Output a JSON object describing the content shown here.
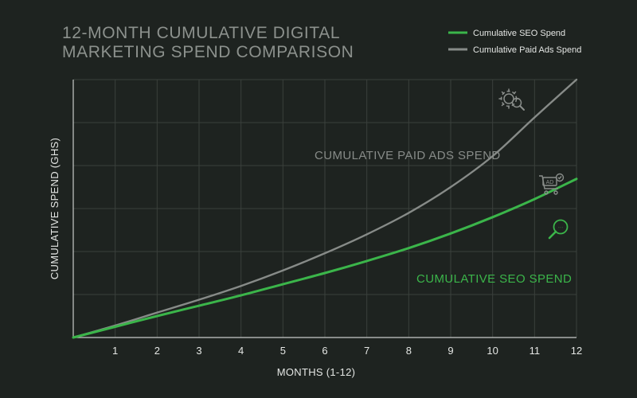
{
  "colors": {
    "background": "#1e2320",
    "grid": "#3a403c",
    "axis": "#c8ccc9",
    "title": "#8c918d",
    "seo": "#3bb54a",
    "paid_ads": "#878b88",
    "label_text": "#e4e6e4",
    "icon": "#8a8e8b",
    "seo_icon": "#3bb54a"
  },
  "chart_data": {
    "type": "line",
    "title_lines": [
      "12-MONTH CUMULATIVE DIGITAL",
      "MARKETING SPEND COMPARISON"
    ],
    "xlabel": "MONTHS (1-12)",
    "ylabel": "CUMULATIVE SPEND (GHS)",
    "x": [
      0,
      1,
      2,
      3,
      4,
      5,
      6,
      7,
      8,
      9,
      10,
      11,
      12
    ],
    "xticks": [
      1,
      2,
      3,
      4,
      5,
      6,
      7,
      8,
      9,
      10,
      11,
      12
    ],
    "xlim": [
      0,
      12
    ],
    "ylim": [
      0,
      6
    ],
    "y_tick_labels_shown": false,
    "grid": true,
    "legend_position": "top-right",
    "series": [
      {
        "name": "Cumulative SEO Spend",
        "key": "seo",
        "inline_label": "CUMULATIVE SEO SPEND",
        "values": [
          0,
          0.25,
          0.5,
          0.74,
          0.98,
          1.24,
          1.5,
          1.78,
          2.08,
          2.42,
          2.8,
          3.22,
          3.69
        ]
      },
      {
        "name": "Cumulative Paid Ads Spend",
        "key": "paid_ads",
        "inline_label": "CUMULATIVE PAID ADS SPEND",
        "values": [
          0,
          0.28,
          0.58,
          0.88,
          1.2,
          1.56,
          1.96,
          2.4,
          2.9,
          3.5,
          4.22,
          5.12,
          6.0
        ]
      }
    ],
    "icons": [
      "gear-search-icon",
      "ad-cart-icon",
      "seo-search-icon"
    ]
  }
}
